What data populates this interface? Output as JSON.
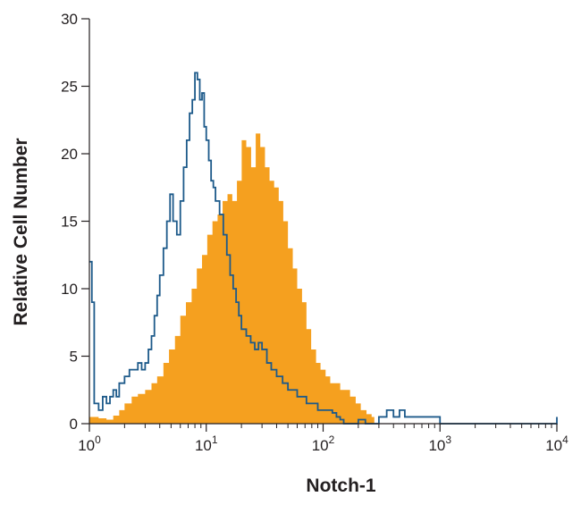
{
  "chart_data": {
    "type": "area",
    "title": "",
    "xlabel": "Notch-1",
    "ylabel": "Relative Cell Number",
    "xscale": "log",
    "xlim": [
      1,
      10000
    ],
    "ylim": [
      0,
      30
    ],
    "grid": false,
    "y_ticks": [
      {
        "value": 0,
        "label": "0"
      },
      {
        "value": 5,
        "label": "5"
      },
      {
        "value": 10,
        "label": "10"
      },
      {
        "value": 15,
        "label": "15"
      },
      {
        "value": 20,
        "label": "20"
      },
      {
        "value": 25,
        "label": "25"
      },
      {
        "value": 30,
        "label": "30"
      }
    ],
    "x_ticks": [
      {
        "value": 1,
        "base": "10",
        "exp": "0"
      },
      {
        "value": 10,
        "base": "10",
        "exp": "1"
      },
      {
        "value": 100,
        "base": "10",
        "exp": "2"
      },
      {
        "value": 1000,
        "base": "10",
        "exp": "3"
      },
      {
        "value": 10000,
        "base": "10",
        "exp": "4"
      }
    ],
    "series": [
      {
        "style": "filled",
        "color": "#f5a01f",
        "x": [
          1.0,
          1.2,
          1.4,
          1.6,
          1.8,
          2.0,
          2.3,
          2.6,
          3.0,
          3.4,
          3.8,
          4.3,
          4.8,
          5.4,
          6.0,
          6.7,
          7.5,
          8.3,
          9.2,
          10.2,
          11.3,
          12.5,
          13.8,
          15.2,
          16.7,
          18.3,
          20.1,
          22.0,
          24.2,
          26.5,
          29.0,
          31.8,
          34.8,
          38.1,
          41.7,
          45.6,
          50.0,
          55.0,
          60.0,
          66.0,
          72.0,
          79.0,
          87.0,
          95.0,
          105.0,
          115.0,
          126.0,
          140.0,
          155.0,
          170.0,
          190.0,
          210.0,
          235.0,
          260.0
        ],
        "y": [
          0.5,
          0.4,
          0.3,
          0.6,
          1.0,
          1.5,
          2.0,
          2.2,
          2.5,
          3.0,
          3.5,
          4.5,
          5.5,
          6.5,
          8.0,
          9.0,
          10.0,
          11.5,
          12.5,
          14.0,
          15.0,
          15.5,
          16.5,
          17.0,
          16.5,
          18.0,
          21.0,
          20.5,
          19.0,
          21.5,
          20.5,
          19.0,
          18.0,
          17.5,
          16.5,
          15.0,
          13.0,
          11.5,
          10.0,
          9.0,
          7.0,
          5.5,
          4.5,
          4.0,
          3.5,
          3.0,
          3.0,
          2.5,
          2.5,
          2.0,
          1.5,
          1.0,
          0.7,
          0.5
        ]
      },
      {
        "style": "outline",
        "color": "#1d5a8a",
        "x": [
          1.0,
          1.05,
          1.1,
          1.2,
          1.3,
          1.4,
          1.5,
          1.6,
          1.7,
          1.8,
          1.9,
          2.0,
          2.2,
          2.4,
          2.6,
          2.8,
          3.0,
          3.2,
          3.4,
          3.6,
          3.8,
          4.0,
          4.3,
          4.6,
          4.9,
          5.2,
          5.6,
          6.0,
          6.4,
          6.8,
          7.2,
          7.6,
          8.0,
          8.4,
          8.8,
          9.2,
          9.6,
          10.0,
          10.5,
          11.0,
          11.5,
          12.0,
          13.0,
          14.0,
          15.0,
          16.0,
          17.0,
          18.0,
          19.0,
          20.0,
          22.0,
          24.0,
          26.0,
          28.0,
          30.0,
          33.0,
          36.0,
          40.0,
          45.0,
          50.0,
          55.0,
          60.0,
          66.0,
          72.0,
          80.0,
          90.0,
          100.0,
          110.0,
          120.0,
          130.0,
          140.0,
          150.0,
          170.0,
          200.0,
          230.0,
          260.0,
          300.0,
          350.0,
          400.0,
          450.0,
          500.0,
          1000.0,
          3000.0,
          9500.0,
          10000.0
        ],
        "y": [
          12.0,
          9.0,
          1.5,
          1.0,
          2.0,
          1.5,
          2.0,
          2.5,
          2.0,
          3.0,
          3.0,
          3.5,
          4.0,
          4.0,
          4.5,
          4.0,
          4.5,
          5.5,
          6.5,
          8.0,
          9.5,
          11.0,
          13.0,
          15.0,
          17.0,
          15.0,
          14.0,
          16.5,
          19.0,
          21.0,
          23.0,
          24.0,
          26.0,
          25.5,
          24.0,
          24.5,
          22.0,
          21.0,
          19.5,
          18.0,
          17.5,
          16.5,
          15.5,
          14.0,
          12.5,
          11.0,
          10.0,
          9.0,
          8.0,
          7.0,
          6.5,
          6.0,
          5.5,
          6.0,
          5.5,
          4.5,
          4.0,
          3.5,
          3.0,
          2.5,
          2.5,
          2.0,
          2.0,
          1.5,
          1.5,
          1.0,
          1.0,
          1.0,
          0.8,
          0.5,
          0.3,
          0.0,
          0.0,
          0.3,
          0.0,
          0.0,
          0.5,
          1.0,
          0.5,
          1.0,
          0.5,
          0.0,
          0.0,
          0.0,
          0.5
        ]
      }
    ]
  }
}
